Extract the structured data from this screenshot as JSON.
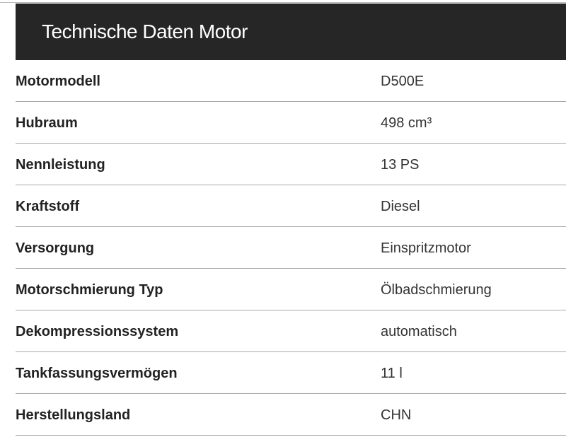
{
  "header": {
    "title": "Technische Daten Motor"
  },
  "rows": [
    {
      "label": "Motormodell",
      "value": "D500E"
    },
    {
      "label": "Hubraum",
      "value": "498 cm³"
    },
    {
      "label": "Nennleistung",
      "value": "13 PS"
    },
    {
      "label": "Kraftstoff",
      "value": "Diesel"
    },
    {
      "label": "Versorgung",
      "value": "Einspritzmotor"
    },
    {
      "label": "Motorschmierung Typ",
      "value": "Ölbadschmierung"
    },
    {
      "label": "Dekompressionssystem",
      "value": "automatisch"
    },
    {
      "label": "Tankfassungsvermögen",
      "value": "11 l"
    },
    {
      "label": "Herstellungsland",
      "value": "CHN"
    }
  ]
}
